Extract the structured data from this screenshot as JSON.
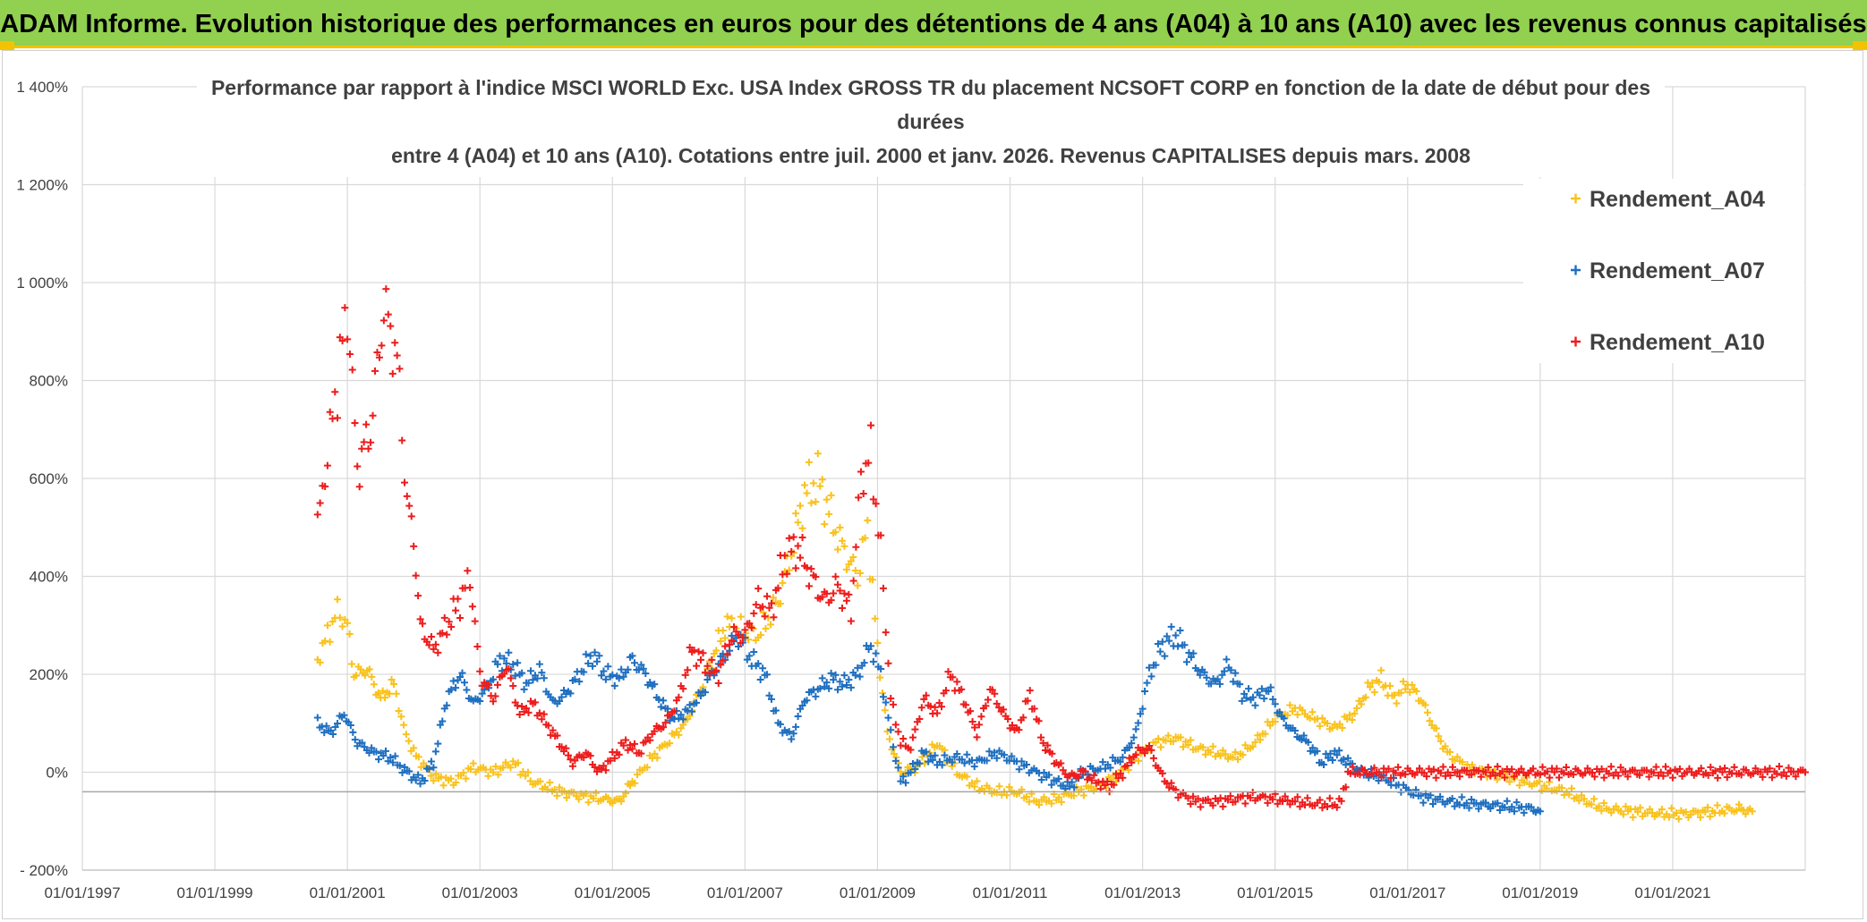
{
  "header": {
    "title": "ADAM Informe. Evolution historique des performances en euros pour des détentions de 4 ans (A04) à 10 ans (A10) avec les revenus connus capitalisés"
  },
  "colors": {
    "banner": "#92d050",
    "accent": "#f2c300",
    "A04": "#f9c21c",
    "A07": "#1f6fc0",
    "A10": "#ee1c1c",
    "grid": "#d9d9d9"
  },
  "chart_data": {
    "type": "scatter",
    "title_lines": [
      "Performance par rapport à l'indice MSCI WORLD Exc. USA Index GROSS TR  du placement NCSOFT CORP en fonction de la date de début pour des",
      "durées",
      "entre 4 (A04) et 10 ans (A10). Cotations entre juil. 2000 et janv. 2026. Revenus CAPITALISES depuis mars. 2008"
    ],
    "xlabel": "",
    "ylabel": "",
    "x_range": [
      1997.0,
      2023.0
    ],
    "ylim": [
      -200,
      1400
    ],
    "y_ticks": [
      -200,
      0,
      200,
      400,
      600,
      800,
      1000,
      1200,
      1400
    ],
    "y_tick_labels": [
      "- 200%",
      "0%",
      "200%",
      "400%",
      "600%",
      "800%",
      "1 000%",
      "1 200%",
      "1 400%"
    ],
    "x_ticks": [
      1997,
      1999,
      2001,
      2003,
      2005,
      2007,
      2009,
      2011,
      2013,
      2015,
      2017,
      2019,
      2021
    ],
    "x_tick_labels": [
      "01/01/1997",
      "01/01/1999",
      "01/01/2001",
      "01/01/2003",
      "01/01/2005",
      "01/01/2007",
      "01/01/2009",
      "01/01/2011",
      "01/01/2013",
      "01/01/2015",
      "01/01/2017",
      "01/01/2019",
      "01/01/2021"
    ],
    "legend_position": "top-right",
    "marker": "+",
    "series": [
      {
        "name": "Rendement_A04",
        "key": "A04",
        "points": [
          [
            2000.55,
            230
          ],
          [
            2000.7,
            280
          ],
          [
            2000.85,
            330
          ],
          [
            2001.0,
            300
          ],
          [
            2001.1,
            200
          ],
          [
            2001.3,
            210
          ],
          [
            2001.5,
            150
          ],
          [
            2001.7,
            180
          ],
          [
            2001.85,
            90
          ],
          [
            2002.0,
            40
          ],
          [
            2002.3,
            -10
          ],
          [
            2002.6,
            -20
          ],
          [
            2002.9,
            10
          ],
          [
            2003.2,
            0
          ],
          [
            2003.5,
            20
          ],
          [
            2003.8,
            -20
          ],
          [
            2004.2,
            -40
          ],
          [
            2004.6,
            -50
          ],
          [
            2004.9,
            -55
          ],
          [
            2005.1,
            -60
          ],
          [
            2005.3,
            -20
          ],
          [
            2005.6,
            30
          ],
          [
            2005.9,
            70
          ],
          [
            2006.1,
            100
          ],
          [
            2006.3,
            160
          ],
          [
            2006.5,
            230
          ],
          [
            2006.7,
            300
          ],
          [
            2006.9,
            290
          ],
          [
            2007.2,
            280
          ],
          [
            2007.5,
            350
          ],
          [
            2007.7,
            450
          ],
          [
            2007.9,
            570
          ],
          [
            2008.1,
            600
          ],
          [
            2008.3,
            520
          ],
          [
            2008.5,
            450
          ],
          [
            2008.7,
            400
          ],
          [
            2008.85,
            500
          ],
          [
            2009.0,
            250
          ],
          [
            2009.15,
            80
          ],
          [
            2009.35,
            0
          ],
          [
            2009.6,
            10
          ],
          [
            2009.9,
            60
          ],
          [
            2010.2,
            0
          ],
          [
            2010.5,
            -30
          ],
          [
            2010.8,
            -40
          ],
          [
            2011.1,
            -40
          ],
          [
            2011.4,
            -60
          ],
          [
            2011.7,
            -55
          ],
          [
            2012.0,
            -40
          ],
          [
            2012.3,
            -30
          ],
          [
            2012.6,
            -10
          ],
          [
            2012.9,
            30
          ],
          [
            2013.2,
            60
          ],
          [
            2013.5,
            70
          ],
          [
            2013.8,
            50
          ],
          [
            2014.1,
            40
          ],
          [
            2014.4,
            30
          ],
          [
            2014.7,
            60
          ],
          [
            2015.0,
            110
          ],
          [
            2015.3,
            130
          ],
          [
            2015.6,
            110
          ],
          [
            2015.9,
            90
          ],
          [
            2016.2,
            120
          ],
          [
            2016.4,
            170
          ],
          [
            2016.6,
            190
          ],
          [
            2016.8,
            150
          ],
          [
            2017.0,
            180
          ],
          [
            2017.2,
            150
          ],
          [
            2017.4,
            90
          ],
          [
            2017.6,
            40
          ],
          [
            2017.9,
            10
          ],
          [
            2018.2,
            0
          ],
          [
            2018.5,
            -10
          ],
          [
            2018.8,
            -20
          ],
          [
            2019.1,
            -30
          ],
          [
            2019.4,
            -40
          ],
          [
            2019.7,
            -60
          ],
          [
            2020.0,
            -75
          ],
          [
            2020.4,
            -80
          ],
          [
            2020.8,
            -85
          ],
          [
            2021.2,
            -85
          ],
          [
            2021.6,
            -80
          ],
          [
            2022.0,
            -75
          ],
          [
            2022.2,
            -80
          ]
        ]
      },
      {
        "name": "Rendement_A07",
        "key": "A07",
        "points": [
          [
            2000.55,
            100
          ],
          [
            2000.75,
            80
          ],
          [
            2000.95,
            120
          ],
          [
            2001.15,
            60
          ],
          [
            2001.4,
            40
          ],
          [
            2001.65,
            30
          ],
          [
            2001.9,
            0
          ],
          [
            2002.1,
            -20
          ],
          [
            2002.3,
            20
          ],
          [
            2002.5,
            150
          ],
          [
            2002.7,
            200
          ],
          [
            2002.9,
            140
          ],
          [
            2003.1,
            170
          ],
          [
            2003.3,
            230
          ],
          [
            2003.5,
            220
          ],
          [
            2003.7,
            180
          ],
          [
            2003.9,
            210
          ],
          [
            2004.1,
            140
          ],
          [
            2004.3,
            160
          ],
          [
            2004.5,
            200
          ],
          [
            2004.7,
            240
          ],
          [
            2004.9,
            200
          ],
          [
            2005.1,
            190
          ],
          [
            2005.3,
            230
          ],
          [
            2005.5,
            200
          ],
          [
            2005.7,
            150
          ],
          [
            2005.9,
            110
          ],
          [
            2006.1,
            120
          ],
          [
            2006.3,
            150
          ],
          [
            2006.5,
            200
          ],
          [
            2006.7,
            240
          ],
          [
            2006.9,
            280
          ],
          [
            2007.1,
            230
          ],
          [
            2007.3,
            200
          ],
          [
            2007.5,
            100
          ],
          [
            2007.7,
            70
          ],
          [
            2007.9,
            150
          ],
          [
            2008.1,
            170
          ],
          [
            2008.3,
            190
          ],
          [
            2008.5,
            180
          ],
          [
            2008.7,
            200
          ],
          [
            2008.9,
            260
          ],
          [
            2009.05,
            200
          ],
          [
            2009.2,
            80
          ],
          [
            2009.35,
            -20
          ],
          [
            2009.5,
            0
          ],
          [
            2009.7,
            40
          ],
          [
            2009.9,
            20
          ],
          [
            2010.2,
            30
          ],
          [
            2010.5,
            20
          ],
          [
            2010.8,
            40
          ],
          [
            2011.1,
            20
          ],
          [
            2011.4,
            0
          ],
          [
            2011.7,
            -20
          ],
          [
            2011.9,
            -30
          ],
          [
            2012.1,
            0
          ],
          [
            2012.4,
            10
          ],
          [
            2012.7,
            30
          ],
          [
            2012.9,
            80
          ],
          [
            2013.1,
            200
          ],
          [
            2013.3,
            260
          ],
          [
            2013.5,
            280
          ],
          [
            2013.7,
            240
          ],
          [
            2013.9,
            200
          ],
          [
            2014.1,
            180
          ],
          [
            2014.3,
            220
          ],
          [
            2014.5,
            160
          ],
          [
            2014.7,
            150
          ],
          [
            2014.9,
            170
          ],
          [
            2015.1,
            110
          ],
          [
            2015.3,
            80
          ],
          [
            2015.5,
            60
          ],
          [
            2015.7,
            20
          ],
          [
            2015.9,
            40
          ],
          [
            2016.1,
            20
          ],
          [
            2016.3,
            0
          ],
          [
            2016.6,
            -10
          ],
          [
            2016.9,
            -30
          ],
          [
            2017.2,
            -50
          ],
          [
            2017.6,
            -60
          ],
          [
            2018.0,
            -65
          ],
          [
            2018.5,
            -70
          ],
          [
            2018.9,
            -75
          ],
          [
            2019.0,
            -80
          ]
        ]
      },
      {
        "name": "Rendement_A10",
        "key": "A10",
        "points": [
          [
            2000.55,
            500
          ],
          [
            2000.7,
            650
          ],
          [
            2000.85,
            800
          ],
          [
            2001.0,
            950
          ],
          [
            2001.15,
            620
          ],
          [
            2001.35,
            700
          ],
          [
            2001.55,
            950
          ],
          [
            2001.75,
            850
          ],
          [
            2001.9,
            550
          ],
          [
            2002.0,
            480
          ],
          [
            2002.1,
            300
          ],
          [
            2002.3,
            250
          ],
          [
            2002.5,
            300
          ],
          [
            2002.7,
            350
          ],
          [
            2002.85,
            400
          ],
          [
            2003.0,
            200
          ],
          [
            2003.2,
            150
          ],
          [
            2003.4,
            220
          ],
          [
            2003.6,
            120
          ],
          [
            2003.8,
            140
          ],
          [
            2004.0,
            100
          ],
          [
            2004.2,
            60
          ],
          [
            2004.4,
            20
          ],
          [
            2004.6,
            40
          ],
          [
            2004.8,
            0
          ],
          [
            2005.0,
            30
          ],
          [
            2005.2,
            60
          ],
          [
            2005.4,
            40
          ],
          [
            2005.6,
            80
          ],
          [
            2005.8,
            100
          ],
          [
            2006.0,
            150
          ],
          [
            2006.2,
            250
          ],
          [
            2006.4,
            220
          ],
          [
            2006.6,
            200
          ],
          [
            2006.8,
            280
          ],
          [
            2007.0,
            280
          ],
          [
            2007.2,
            350
          ],
          [
            2007.4,
            330
          ],
          [
            2007.6,
            440
          ],
          [
            2007.8,
            460
          ],
          [
            2008.0,
            400
          ],
          [
            2008.2,
            350
          ],
          [
            2008.4,
            380
          ],
          [
            2008.6,
            330
          ],
          [
            2008.75,
            600
          ],
          [
            2008.9,
            650
          ],
          [
            2009.05,
            450
          ],
          [
            2009.2,
            150
          ],
          [
            2009.35,
            60
          ],
          [
            2009.5,
            50
          ],
          [
            2009.7,
            150
          ],
          [
            2009.9,
            120
          ],
          [
            2010.1,
            200
          ],
          [
            2010.3,
            150
          ],
          [
            2010.5,
            80
          ],
          [
            2010.7,
            170
          ],
          [
            2010.9,
            120
          ],
          [
            2011.1,
            80
          ],
          [
            2011.3,
            160
          ],
          [
            2011.5,
            60
          ],
          [
            2011.7,
            20
          ],
          [
            2011.9,
            -10
          ],
          [
            2012.1,
            0
          ],
          [
            2012.3,
            -20
          ],
          [
            2012.5,
            -30
          ],
          [
            2012.7,
            0
          ],
          [
            2012.9,
            40
          ],
          [
            2013.1,
            50
          ],
          [
            2013.3,
            -10
          ],
          [
            2013.5,
            -40
          ],
          [
            2013.8,
            -60
          ],
          [
            2014.1,
            -60
          ],
          [
            2014.4,
            -55
          ],
          [
            2014.7,
            -50
          ],
          [
            2015.0,
            -55
          ],
          [
            2015.3,
            -60
          ],
          [
            2015.6,
            -65
          ],
          [
            2015.9,
            -65
          ],
          [
            2016.0,
            -60
          ],
          [
            2016.1,
            0
          ],
          [
            2017.0,
            0
          ],
          [
            2018.0,
            0
          ],
          [
            2019.0,
            0
          ],
          [
            2020.0,
            0
          ],
          [
            2021.0,
            0
          ],
          [
            2022.0,
            0
          ],
          [
            2023.0,
            0
          ]
        ]
      }
    ]
  }
}
